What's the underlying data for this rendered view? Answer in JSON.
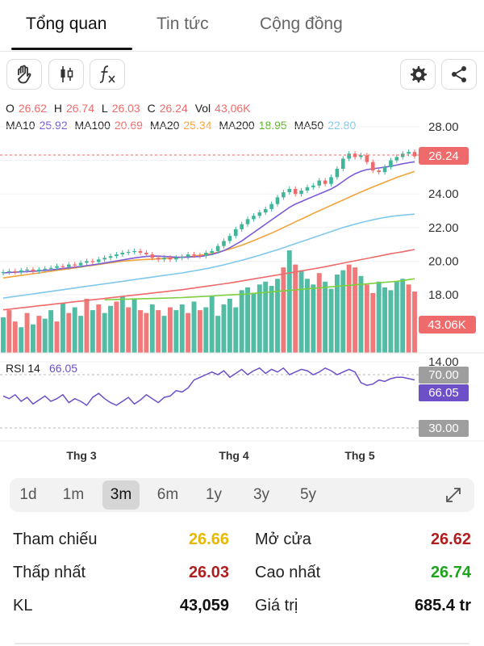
{
  "tabs": [
    {
      "label": "Tổng quan",
      "active": true
    },
    {
      "label": "Tin tức",
      "active": false
    },
    {
      "label": "Cộng đồng",
      "active": false
    }
  ],
  "toolbar": {
    "icons": [
      "hand-icon",
      "candlestick-icon",
      "function-icon",
      "gear-icon",
      "share-icon"
    ]
  },
  "ohlc": {
    "o_label": "O",
    "o_value": "26.62",
    "h_label": "H",
    "h_value": "26.74",
    "l_label": "L",
    "l_value": "26.03",
    "c_label": "C",
    "c_value": "26.24",
    "vol_label": "Vol",
    "vol_value": "43,06K"
  },
  "ma": {
    "ma10_label": "MA10",
    "ma10_value": "25.92",
    "ma100_label": "MA100",
    "ma100_value": "20.69",
    "ma20_label": "MA20",
    "ma20_value": "25.34",
    "ma200_label": "MA200",
    "ma200_value": "18.95",
    "ma50_label": "MA50",
    "ma50_value": "22.80"
  },
  "rsi": {
    "label": "RSI 14",
    "value": "66.05",
    "upper": "70.00",
    "lower": "30.00",
    "current_tag": "66.05"
  },
  "colors": {
    "up": "#3fb59a",
    "down": "#ef6a6a",
    "ma10": "#7b5bd6",
    "ma20": "#f2a33a",
    "ma50": "#7fc8ec",
    "ma100": "#ef6a6a",
    "ma200": "#7ccf3d",
    "rsi": "#6d4fc8",
    "price_tag": "#ef6a6a",
    "good": "#1aa51a",
    "bad": "#b01f1f",
    "ref": "#e6b800"
  },
  "chart_data": {
    "type": "candlestick",
    "price_axis_ticks": [
      "28.00",
      "26.00",
      "24.00",
      "22.00",
      "20.00",
      "18.00",
      "14.00"
    ],
    "price_axis_range": [
      13.6,
      28.8
    ],
    "last_price_tag": "26.24",
    "volume_tag": "43.06K",
    "x_tick_labels": [
      "Thg 3",
      "Thg 4",
      "Thg 5"
    ],
    "closes": [
      19.35,
      19.4,
      19.35,
      19.45,
      19.5,
      19.4,
      19.5,
      19.55,
      19.6,
      19.7,
      19.65,
      19.8,
      19.75,
      19.9,
      20.0,
      19.95,
      20.1,
      20.2,
      20.3,
      20.4,
      20.5,
      20.55,
      20.6,
      20.5,
      20.4,
      20.2,
      20.1,
      20.2,
      20.1,
      20.2,
      20.25,
      20.4,
      20.35,
      20.3,
      20.5,
      20.6,
      20.9,
      21.2,
      21.5,
      21.9,
      22.2,
      22.5,
      22.7,
      22.9,
      23.1,
      23.4,
      23.8,
      24.1,
      24.3,
      24.0,
      24.2,
      24.4,
      24.5,
      24.8,
      24.6,
      25.0,
      25.5,
      26.1,
      26.4,
      26.2,
      26.3,
      25.9,
      25.4,
      25.3,
      25.6,
      26.0,
      26.2,
      26.4,
      26.5,
      26.24
    ],
    "ma10": [
      19.3,
      19.32,
      19.34,
      19.36,
      19.38,
      19.4,
      19.42,
      19.45,
      19.48,
      19.52,
      19.56,
      19.6,
      19.64,
      19.68,
      19.73,
      19.78,
      19.83,
      19.89,
      19.95,
      20.01,
      20.07,
      20.13,
      20.19,
      20.24,
      20.28,
      20.3,
      20.3,
      20.28,
      20.26,
      20.24,
      20.23,
      20.24,
      20.26,
      20.28,
      20.33,
      20.4,
      20.5,
      20.63,
      20.8,
      21.0,
      21.2,
      21.45,
      21.7,
      21.95,
      22.2,
      22.45,
      22.7,
      22.95,
      23.2,
      23.4,
      23.55,
      23.7,
      23.85,
      24.0,
      24.15,
      24.3,
      24.5,
      24.75,
      25.0,
      25.2,
      25.35,
      25.45,
      25.5,
      25.55,
      25.6,
      25.65,
      25.72,
      25.8,
      25.86,
      25.92
    ],
    "ma20": [
      19.0,
      19.05,
      19.1,
      19.15,
      19.2,
      19.25,
      19.3,
      19.35,
      19.4,
      19.45,
      19.5,
      19.55,
      19.6,
      19.65,
      19.7,
      19.75,
      19.8,
      19.85,
      19.9,
      19.95,
      20.0,
      20.03,
      20.06,
      20.08,
      20.1,
      20.12,
      20.14,
      20.16,
      20.18,
      20.2,
      20.23,
      20.26,
      20.3,
      20.35,
      20.4,
      20.46,
      20.53,
      20.62,
      20.72,
      20.83,
      20.95,
      21.08,
      21.22,
      21.37,
      21.52,
      21.67,
      21.83,
      22.0,
      22.17,
      22.34,
      22.5,
      22.67,
      22.84,
      23.0,
      23.16,
      23.32,
      23.48,
      23.64,
      23.8,
      23.96,
      24.12,
      24.27,
      24.42,
      24.56,
      24.7,
      24.84,
      24.98,
      25.1,
      25.22,
      25.34
    ],
    "ma50": [
      17.8,
      17.85,
      17.9,
      17.95,
      18.0,
      18.05,
      18.1,
      18.15,
      18.2,
      18.25,
      18.3,
      18.35,
      18.4,
      18.45,
      18.5,
      18.55,
      18.6,
      18.65,
      18.7,
      18.75,
      18.8,
      18.85,
      18.9,
      18.95,
      19.0,
      19.05,
      19.1,
      19.15,
      19.2,
      19.25,
      19.3,
      19.36,
      19.42,
      19.48,
      19.55,
      19.62,
      19.7,
      19.78,
      19.87,
      19.96,
      20.05,
      20.15,
      20.25,
      20.35,
      20.46,
      20.57,
      20.68,
      20.8,
      20.92,
      21.04,
      21.16,
      21.28,
      21.4,
      21.52,
      21.64,
      21.76,
      21.88,
      22.0,
      22.1,
      22.2,
      22.3,
      22.38,
      22.46,
      22.54,
      22.6,
      22.66,
      22.7,
      22.74,
      22.77,
      22.8
    ],
    "ma100": [
      17.1,
      17.14,
      17.18,
      17.22,
      17.26,
      17.3,
      17.34,
      17.38,
      17.42,
      17.46,
      17.5,
      17.54,
      17.58,
      17.62,
      17.66,
      17.7,
      17.74,
      17.78,
      17.82,
      17.86,
      17.9,
      17.94,
      17.98,
      18.02,
      18.06,
      18.1,
      18.14,
      18.18,
      18.22,
      18.26,
      18.3,
      18.35,
      18.4,
      18.45,
      18.5,
      18.55,
      18.6,
      18.65,
      18.7,
      18.76,
      18.82,
      18.88,
      18.94,
      19.0,
      19.06,
      19.12,
      19.18,
      19.24,
      19.3,
      19.36,
      19.42,
      19.48,
      19.54,
      19.6,
      19.67,
      19.74,
      19.81,
      19.88,
      19.95,
      20.02,
      20.09,
      20.16,
      20.23,
      20.3,
      20.37,
      20.44,
      20.5,
      20.56,
      20.63,
      20.69
    ],
    "ma200": [
      null,
      null,
      null,
      null,
      null,
      null,
      null,
      null,
      null,
      null,
      null,
      null,
      null,
      null,
      null,
      null,
      null,
      17.7,
      17.71,
      17.72,
      17.73,
      17.74,
      17.75,
      17.76,
      17.77,
      17.78,
      17.79,
      17.8,
      17.81,
      17.82,
      17.83,
      17.85,
      17.87,
      17.89,
      17.91,
      17.93,
      17.95,
      17.97,
      17.99,
      18.01,
      18.03,
      18.05,
      18.08,
      18.11,
      18.14,
      18.17,
      18.2,
      18.23,
      18.26,
      18.29,
      18.32,
      18.35,
      18.38,
      18.41,
      18.44,
      18.47,
      18.5,
      18.53,
      18.56,
      18.59,
      18.62,
      18.65,
      18.68,
      18.71,
      18.74,
      18.77,
      18.8,
      18.84,
      18.9,
      18.95
    ],
    "volumes": [
      25,
      30,
      22,
      18,
      28,
      20,
      26,
      24,
      30,
      22,
      35,
      28,
      32,
      26,
      38,
      30,
      34,
      28,
      33,
      36,
      40,
      32,
      38,
      30,
      28,
      34,
      30,
      26,
      32,
      30,
      34,
      28,
      36,
      30,
      32,
      40,
      26,
      34,
      38,
      32,
      44,
      46,
      42,
      48,
      50,
      47,
      52,
      60,
      72,
      62,
      58,
      52,
      48,
      56,
      50,
      45,
      55,
      58,
      62,
      60,
      54,
      48,
      42,
      50,
      46,
      44,
      50,
      52,
      48,
      43.06
    ],
    "volume_up": [
      true,
      false,
      false,
      true,
      false,
      true,
      false,
      true,
      true,
      false,
      true,
      false,
      true,
      true,
      false,
      true,
      false,
      true,
      true,
      false,
      true,
      false,
      true,
      false,
      false,
      true,
      false,
      true,
      false,
      true,
      true,
      false,
      true,
      false,
      true,
      true,
      true,
      true,
      true,
      true,
      true,
      true,
      true,
      true,
      true,
      true,
      true,
      false,
      true,
      false,
      true,
      true,
      true,
      false,
      true,
      true,
      true,
      true,
      false,
      false,
      true,
      false,
      false,
      true,
      true,
      true,
      true,
      true,
      false,
      false
    ],
    "rsi": [
      54,
      52,
      55,
      50,
      53,
      48,
      51,
      54,
      50,
      52,
      55,
      49,
      52,
      50,
      47,
      53,
      56,
      52,
      49,
      47,
      50,
      53,
      48,
      51,
      55,
      52,
      49,
      53,
      54,
      58,
      57,
      60,
      66,
      68,
      70,
      72,
      70,
      73,
      68,
      71,
      74,
      70,
      73,
      75,
      71,
      74,
      72,
      75,
      70,
      72,
      74,
      73,
      70,
      72,
      75,
      73,
      70,
      72,
      74,
      72,
      64,
      62,
      63,
      66,
      65,
      67,
      68,
      68,
      67,
      66.05
    ]
  },
  "ranges": [
    {
      "label": "1d",
      "active": false
    },
    {
      "label": "1m",
      "active": false
    },
    {
      "label": "3m",
      "active": true
    },
    {
      "label": "6m",
      "active": false
    },
    {
      "label": "1y",
      "active": false
    },
    {
      "label": "3y",
      "active": false
    },
    {
      "label": "5y",
      "active": false
    }
  ],
  "stats": {
    "ref_label": "Tham chiếu",
    "ref_value": "26.66",
    "open_label": "Mở cửa",
    "open_value": "26.62",
    "low_label": "Thấp nhất",
    "low_value": "26.03",
    "high_label": "Cao nhất",
    "high_value": "26.74",
    "vol_label": "KL",
    "vol_value": "43,059",
    "value_label": "Giá trị",
    "value_value": "685.4 tr"
  }
}
